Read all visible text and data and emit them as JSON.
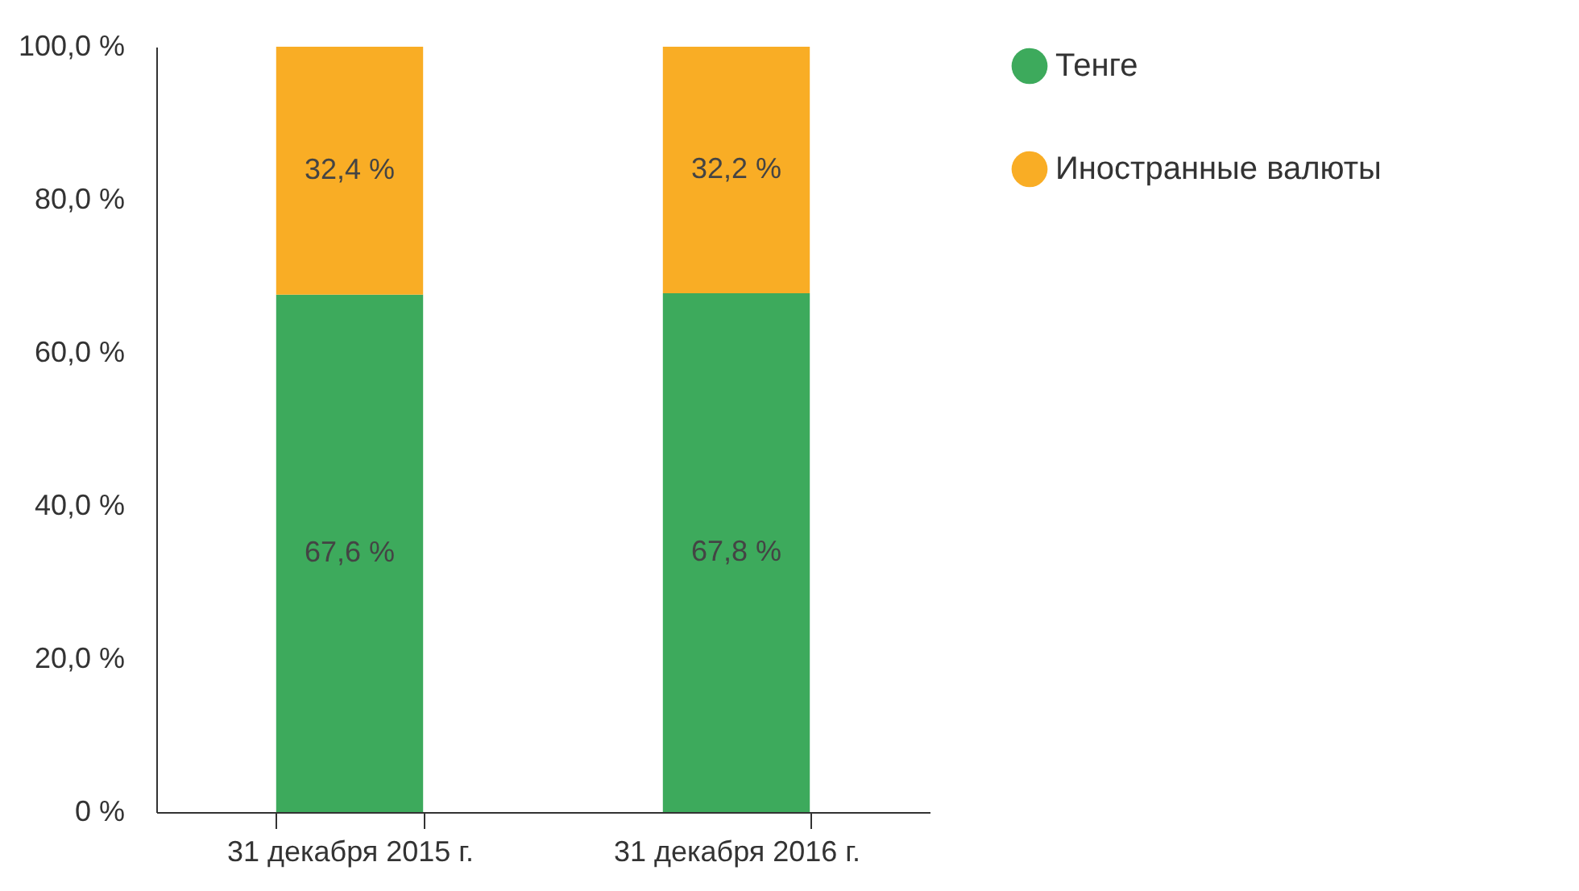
{
  "chart_data": {
    "type": "bar",
    "stacked": true,
    "categories": [
      "31 декабря 2015 г.",
      "31 декабря 2016 г."
    ],
    "series": [
      {
        "name": "Тенге",
        "color": "#3daa5c",
        "values": [
          67.6,
          67.8
        ],
        "value_labels": [
          "67,6 %",
          "67,8 %"
        ]
      },
      {
        "name": "Иностранные валюты",
        "color": "#f9ad25",
        "values": [
          32.4,
          32.2
        ],
        "value_labels": [
          "32,4 %",
          "32,2 %"
        ]
      }
    ],
    "ylim": [
      0,
      100
    ],
    "yticks": [
      {
        "value": 0,
        "label": "0 %"
      },
      {
        "value": 20,
        "label": "20,0 %"
      },
      {
        "value": 40,
        "label": "40,0 %"
      },
      {
        "value": 60,
        "label": "60,0 %"
      },
      {
        "value": 80,
        "label": "80,0 %"
      },
      {
        "value": 100,
        "label": "100,0 %"
      }
    ],
    "grid": false,
    "legend": "right"
  }
}
